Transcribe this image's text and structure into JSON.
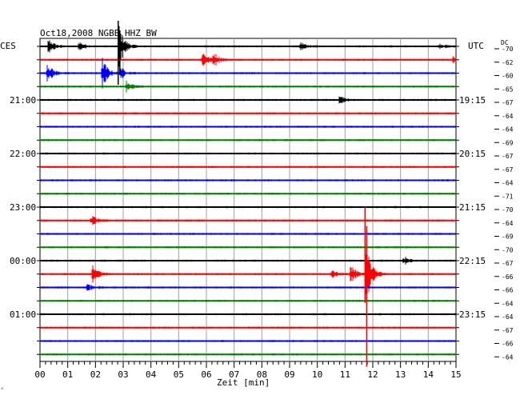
{
  "chart_data": {
    "type": "line",
    "title": "Oct18,2008  NGBB HHZ BW",
    "xlabel": "Zeit [min]",
    "xlim": [
      0,
      15
    ],
    "x_ticks": [
      "00",
      "01",
      "02",
      "03",
      "04",
      "05",
      "06",
      "07",
      "08",
      "09",
      "10",
      "11",
      "12",
      "13",
      "14",
      "15"
    ],
    "left_axis_label": "CES",
    "right_axis_label": "UTC",
    "dc_label": "DC",
    "left_time_labels": [
      {
        "row": 4,
        "text": "21:00"
      },
      {
        "row": 8,
        "text": "22:00"
      },
      {
        "row": 12,
        "text": "23:00"
      },
      {
        "row": 16,
        "text": "00:00"
      },
      {
        "row": 20,
        "text": "01:00"
      }
    ],
    "right_time_labels": [
      {
        "row": 4,
        "text": "19:15"
      },
      {
        "row": 8,
        "text": "20:15"
      },
      {
        "row": 12,
        "text": "21:15"
      },
      {
        "row": 16,
        "text": "22:15"
      },
      {
        "row": 20,
        "text": "23:15"
      }
    ],
    "dc_values": [
      "-70",
      "-62",
      "-60",
      "-65",
      "-67",
      "-64",
      "-64",
      "-69",
      "-67",
      "-67",
      "-64",
      "-71",
      "-70",
      "-64",
      "-69",
      "-70",
      "-67",
      "-66",
      "-66",
      "-64",
      "-64",
      "-67",
      "-66",
      "-64"
    ],
    "row_colors": [
      "#000000",
      "#ff0000",
      "#0000ff",
      "#008000"
    ],
    "events": [
      {
        "row": 0,
        "x": 0.3,
        "amp": 0.8
      },
      {
        "row": 0,
        "x": 1.4,
        "amp": 0.5
      },
      {
        "row": 0,
        "x": 2.85,
        "amp": 2.2
      },
      {
        "row": 0,
        "x": 9.4,
        "amp": 0.4
      },
      {
        "row": 0,
        "x": 14.4,
        "amp": 0.3
      },
      {
        "row": 1,
        "x": 5.85,
        "amp": 0.9
      },
      {
        "row": 1,
        "x": 6.25,
        "amp": 0.8
      },
      {
        "row": 1,
        "x": 14.9,
        "amp": 0.4
      },
      {
        "row": 2,
        "x": 0.25,
        "amp": 1.2
      },
      {
        "row": 2,
        "x": 2.25,
        "amp": 1.5
      },
      {
        "row": 2,
        "x": 2.9,
        "amp": 0.6
      },
      {
        "row": 3,
        "x": 3.1,
        "amp": 0.6
      },
      {
        "row": 4,
        "x": 10.8,
        "amp": 0.4
      },
      {
        "row": 13,
        "x": 1.85,
        "amp": 0.6
      },
      {
        "row": 16,
        "x": 13.1,
        "amp": 0.45
      },
      {
        "row": 17,
        "x": 1.9,
        "amp": 1.0
      },
      {
        "row": 17,
        "x": 10.5,
        "amp": 0.4
      },
      {
        "row": 17,
        "x": 11.2,
        "amp": 1.0
      },
      {
        "row": 17,
        "x": 11.75,
        "amp": 3.5
      },
      {
        "row": 18,
        "x": 1.7,
        "amp": 0.4
      }
    ]
  }
}
